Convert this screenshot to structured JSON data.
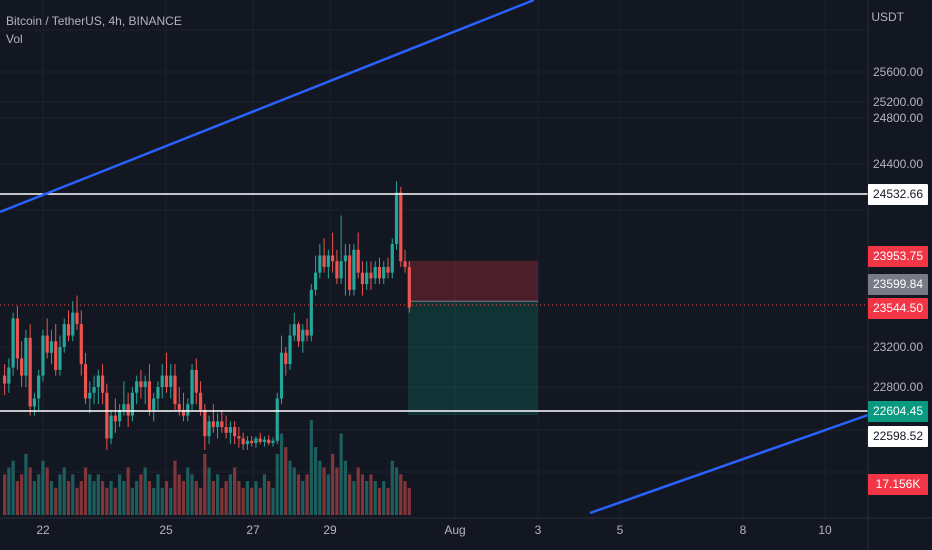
{
  "legend": {
    "symbol": "Bitcoin / TetherUS, 4h, BINANCE",
    "indicator": "Vol"
  },
  "price_axis": {
    "unit": "USDT",
    "ticks": [
      "25600.00",
      "25200.00",
      "24800.00",
      "24400.00",
      "23200.00",
      "22800.00"
    ]
  },
  "time_axis": {
    "ticks": [
      "22",
      "25",
      "27",
      "29",
      "Aug",
      "3",
      "5",
      "8",
      "10"
    ]
  },
  "price_labels": [
    {
      "name": "resistance-price-label",
      "text": "24532.66",
      "bg": "#ffffff",
      "fg": "#131722",
      "price": 24532.66
    },
    {
      "name": "stop-loss-price-label",
      "text": "23953.75",
      "bg": "#f23645",
      "fg": "#ffffff",
      "price": 23953.75
    },
    {
      "name": "entry-price-label",
      "text": "23599.84",
      "bg": "#787b86",
      "fg": "#ffffff",
      "price": 23599.84
    },
    {
      "name": "last-price-label",
      "text": "23544.50",
      "bg": "#f23645",
      "fg": "#ffffff",
      "price": 23544.5
    },
    {
      "name": "take-profit-price-label",
      "text": "22604.45",
      "bg": "#089981",
      "fg": "#ffffff",
      "price": 22604.45
    },
    {
      "name": "support-price-label",
      "text": "22598.52",
      "bg": "#ffffff",
      "fg": "#131722",
      "price": 22598.52
    },
    {
      "name": "volume-label",
      "text": "17.156K",
      "bg": "#f23645",
      "fg": "#ffffff",
      "price": null
    }
  ],
  "colors": {
    "background": "#131722",
    "grid": "#1e222d",
    "up": "#26a69a",
    "down": "#ef5350",
    "trendline": "#2962ff",
    "hline": "#ffffff",
    "axis_text": "#b2b5be",
    "stop_zone": "rgba(242,54,69,0.25)",
    "target_zone": "rgba(8,153,129,0.22)"
  },
  "chart_data": {
    "type": "candlestick",
    "timeframe": "4h",
    "price_range": [
      22350,
      25950
    ],
    "horizontal_levels": [
      24532.66,
      22598.52
    ],
    "position": {
      "type": "short",
      "entry": 23599.84,
      "stop": 23953.75,
      "target": 22604.45
    },
    "candles": [
      {
        "o": 22950,
        "h": 23050,
        "l": 22780,
        "c": 22880
      },
      {
        "o": 22880,
        "h": 23100,
        "l": 22800,
        "c": 23020
      },
      {
        "o": 23020,
        "h": 23500,
        "l": 22950,
        "c": 23450
      },
      {
        "o": 23450,
        "h": 23560,
        "l": 23000,
        "c": 23100
      },
      {
        "o": 23100,
        "h": 23250,
        "l": 22850,
        "c": 22950
      },
      {
        "o": 22950,
        "h": 23350,
        "l": 22850,
        "c": 23280
      },
      {
        "o": 23280,
        "h": 23400,
        "l": 22600,
        "c": 22680
      },
      {
        "o": 22680,
        "h": 22800,
        "l": 22600,
        "c": 22750
      },
      {
        "o": 22750,
        "h": 23000,
        "l": 22650,
        "c": 22950
      },
      {
        "o": 22950,
        "h": 23350,
        "l": 22900,
        "c": 23300
      },
      {
        "o": 23300,
        "h": 23450,
        "l": 23100,
        "c": 23150
      },
      {
        "o": 23150,
        "h": 23350,
        "l": 23050,
        "c": 23250
      },
      {
        "o": 23250,
        "h": 23400,
        "l": 22950,
        "c": 23000
      },
      {
        "o": 23000,
        "h": 23300,
        "l": 22950,
        "c": 23200
      },
      {
        "o": 23200,
        "h": 23450,
        "l": 23150,
        "c": 23400
      },
      {
        "o": 23400,
        "h": 23520,
        "l": 23250,
        "c": 23300
      },
      {
        "o": 23300,
        "h": 23600,
        "l": 23250,
        "c": 23500
      },
      {
        "o": 23500,
        "h": 23650,
        "l": 23350,
        "c": 23400
      },
      {
        "o": 23400,
        "h": 23520,
        "l": 22950,
        "c": 23050
      },
      {
        "o": 23050,
        "h": 23150,
        "l": 22700,
        "c": 22750
      },
      {
        "o": 22750,
        "h": 22900,
        "l": 22620,
        "c": 22800
      },
      {
        "o": 22800,
        "h": 22950,
        "l": 22700,
        "c": 22850
      },
      {
        "o": 22850,
        "h": 23000,
        "l": 22700,
        "c": 22950
      },
      {
        "o": 22950,
        "h": 23050,
        "l": 22700,
        "c": 22800
      },
      {
        "o": 22800,
        "h": 22880,
        "l": 22300,
        "c": 22400
      },
      {
        "o": 22400,
        "h": 22650,
        "l": 22350,
        "c": 22600
      },
      {
        "o": 22600,
        "h": 22750,
        "l": 22450,
        "c": 22550
      },
      {
        "o": 22550,
        "h": 22700,
        "l": 22500,
        "c": 22650
      },
      {
        "o": 22650,
        "h": 22900,
        "l": 22600,
        "c": 22700
      },
      {
        "o": 22700,
        "h": 22800,
        "l": 22500,
        "c": 22600
      },
      {
        "o": 22600,
        "h": 22850,
        "l": 22550,
        "c": 22800
      },
      {
        "o": 22800,
        "h": 22950,
        "l": 22700,
        "c": 22900
      },
      {
        "o": 22900,
        "h": 23000,
        "l": 22750,
        "c": 22850
      },
      {
        "o": 22850,
        "h": 22950,
        "l": 22700,
        "c": 22900
      },
      {
        "o": 22900,
        "h": 23050,
        "l": 22600,
        "c": 22650
      },
      {
        "o": 22650,
        "h": 22800,
        "l": 22550,
        "c": 22750
      },
      {
        "o": 22750,
        "h": 22900,
        "l": 22650,
        "c": 22850
      },
      {
        "o": 22850,
        "h": 23050,
        "l": 22750,
        "c": 22950
      },
      {
        "o": 22950,
        "h": 23150,
        "l": 22800,
        "c": 22850
      },
      {
        "o": 22850,
        "h": 23050,
        "l": 22750,
        "c": 22950
      },
      {
        "o": 22950,
        "h": 23050,
        "l": 22650,
        "c": 22700
      },
      {
        "o": 22700,
        "h": 22850,
        "l": 22600,
        "c": 22650
      },
      {
        "o": 22650,
        "h": 22800,
        "l": 22550,
        "c": 22600
      },
      {
        "o": 22600,
        "h": 22750,
        "l": 22550,
        "c": 22700
      },
      {
        "o": 22700,
        "h": 23050,
        "l": 22650,
        "c": 23000
      },
      {
        "o": 23000,
        "h": 23100,
        "l": 22700,
        "c": 22800
      },
      {
        "o": 22800,
        "h": 22900,
        "l": 22600,
        "c": 22650
      },
      {
        "o": 22650,
        "h": 22700,
        "l": 22300,
        "c": 22420
      },
      {
        "o": 22420,
        "h": 22600,
        "l": 22350,
        "c": 22550
      },
      {
        "o": 22550,
        "h": 22700,
        "l": 22450,
        "c": 22500
      },
      {
        "o": 22500,
        "h": 22620,
        "l": 22400,
        "c": 22550
      },
      {
        "o": 22550,
        "h": 22650,
        "l": 22450,
        "c": 22500
      },
      {
        "o": 22500,
        "h": 22600,
        "l": 22400,
        "c": 22450
      },
      {
        "o": 22450,
        "h": 22550,
        "l": 22350,
        "c": 22500
      },
      {
        "o": 22500,
        "h": 22550,
        "l": 22350,
        "c": 22420
      },
      {
        "o": 22420,
        "h": 22500,
        "l": 22320,
        "c": 22400
      },
      {
        "o": 22400,
        "h": 22450,
        "l": 22300,
        "c": 22350
      },
      {
        "o": 22350,
        "h": 22420,
        "l": 22300,
        "c": 22380
      },
      {
        "o": 22380,
        "h": 22420,
        "l": 22330,
        "c": 22360
      },
      {
        "o": 22360,
        "h": 22420,
        "l": 22320,
        "c": 22400
      },
      {
        "o": 22400,
        "h": 22450,
        "l": 22350,
        "c": 22370
      },
      {
        "o": 22370,
        "h": 22420,
        "l": 22330,
        "c": 22390
      },
      {
        "o": 22390,
        "h": 22430,
        "l": 22340,
        "c": 22360
      },
      {
        "o": 22360,
        "h": 22410,
        "l": 22330,
        "c": 22380
      },
      {
        "o": 22380,
        "h": 22800,
        "l": 22350,
        "c": 22750
      },
      {
        "o": 22750,
        "h": 23300,
        "l": 22700,
        "c": 23150
      },
      {
        "o": 23150,
        "h": 23200,
        "l": 22950,
        "c": 23050
      },
      {
        "o": 23050,
        "h": 23400,
        "l": 23000,
        "c": 23300
      },
      {
        "o": 23300,
        "h": 23500,
        "l": 23250,
        "c": 23400
      },
      {
        "o": 23400,
        "h": 23420,
        "l": 23200,
        "c": 23250
      },
      {
        "o": 23250,
        "h": 23400,
        "l": 23150,
        "c": 23350
      },
      {
        "o": 23350,
        "h": 23450,
        "l": 23250,
        "c": 23300
      },
      {
        "o": 23300,
        "h": 23750,
        "l": 23250,
        "c": 23700
      },
      {
        "o": 23700,
        "h": 24000,
        "l": 23650,
        "c": 23850
      },
      {
        "o": 23850,
        "h": 24100,
        "l": 23800,
        "c": 24000
      },
      {
        "o": 24000,
        "h": 24150,
        "l": 23850,
        "c": 23900
      },
      {
        "o": 23900,
        "h": 24050,
        "l": 23800,
        "c": 24000
      },
      {
        "o": 24000,
        "h": 24200,
        "l": 23850,
        "c": 23950
      },
      {
        "o": 23950,
        "h": 24050,
        "l": 23750,
        "c": 23800
      },
      {
        "o": 23800,
        "h": 24350,
        "l": 23750,
        "c": 23950
      },
      {
        "o": 23950,
        "h": 24100,
        "l": 23650,
        "c": 24000
      },
      {
        "o": 24000,
        "h": 24100,
        "l": 23650,
        "c": 23700
      },
      {
        "o": 23700,
        "h": 24100,
        "l": 23650,
        "c": 24050
      },
      {
        "o": 24050,
        "h": 24200,
        "l": 23800,
        "c": 23850
      },
      {
        "o": 23850,
        "h": 23950,
        "l": 23650,
        "c": 23750
      },
      {
        "o": 23750,
        "h": 23950,
        "l": 23700,
        "c": 23850
      },
      {
        "o": 23850,
        "h": 23950,
        "l": 23700,
        "c": 23800
      },
      {
        "o": 23800,
        "h": 23950,
        "l": 23750,
        "c": 23900
      },
      {
        "o": 23900,
        "h": 23980,
        "l": 23750,
        "c": 23800
      },
      {
        "o": 23800,
        "h": 23950,
        "l": 23750,
        "c": 23900
      },
      {
        "o": 23900,
        "h": 23980,
        "l": 23800,
        "c": 23850
      },
      {
        "o": 23850,
        "h": 24150,
        "l": 23800,
        "c": 24100
      },
      {
        "o": 24100,
        "h": 24650,
        "l": 24050,
        "c": 24550
      },
      {
        "o": 24550,
        "h": 24600,
        "l": 23900,
        "c": 23950
      },
      {
        "o": 23950,
        "h": 24050,
        "l": 23850,
        "c": 23900
      },
      {
        "o": 23900,
        "h": 23950,
        "l": 23500,
        "c": 23544.5
      }
    ],
    "volumes": [
      0.6,
      0.7,
      0.8,
      0.5,
      0.6,
      0.9,
      0.7,
      0.5,
      0.6,
      0.8,
      0.7,
      0.5,
      0.4,
      0.6,
      0.7,
      0.5,
      0.6,
      0.4,
      0.5,
      0.7,
      0.6,
      0.5,
      0.6,
      0.5,
      0.4,
      0.5,
      0.4,
      0.6,
      0.5,
      0.7,
      0.4,
      0.5,
      0.6,
      0.7,
      0.5,
      0.4,
      0.6,
      0.4,
      0.5,
      0.4,
      0.8,
      0.6,
      0.5,
      0.7,
      0.6,
      0.5,
      0.4,
      0.9,
      0.7,
      0.5,
      0.6,
      0.4,
      0.5,
      0.6,
      0.7,
      0.5,
      0.4,
      0.5,
      0.4,
      0.5,
      0.4,
      0.6,
      0.5,
      0.4,
      0.9,
      1.2,
      1.0,
      0.8,
      0.7,
      0.6,
      0.5,
      0.6,
      1.4,
      1.0,
      0.8,
      0.7,
      0.6,
      0.9,
      0.7,
      1.2,
      0.8,
      0.6,
      0.5,
      0.7,
      0.6,
      0.5,
      0.6,
      0.5,
      0.4,
      0.5,
      0.4,
      0.8,
      0.7,
      0.6,
      0.5,
      0.4
    ]
  }
}
